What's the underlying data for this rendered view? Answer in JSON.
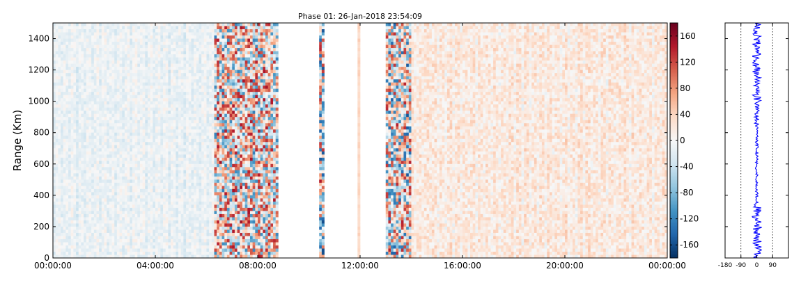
{
  "chart_data": [
    {
      "type": "heatmap",
      "title": "Phase 01: 26-Jan-2018 23:54:09",
      "xlabel": "",
      "ylabel": "Range (Km)",
      "x_ticks": [
        "00:00:00",
        "04:00:00",
        "08:00:00",
        "12:00:00",
        "16:00:00",
        "20:00:00",
        "00:00:00"
      ],
      "x_range_hours": [
        0,
        24
      ],
      "y_ticks": [
        0,
        200,
        400,
        600,
        800,
        1000,
        1200,
        1400
      ],
      "ylim": [
        0,
        1500
      ],
      "grid": false,
      "colorbar": {
        "colormap": "RdBu_r",
        "range": [
          -180,
          180
        ],
        "ticks": [
          160,
          120,
          80,
          40,
          0,
          -40,
          -80,
          -120,
          -160
        ]
      },
      "no_data_intervals_hours": [
        [
          8.85,
          10.45
        ],
        [
          10.6,
          11.9
        ],
        [
          12.02,
          13.02
        ]
      ],
      "regions": [
        {
          "from_hour": 0.0,
          "to_hour": 6.3,
          "mean": -8,
          "spread": 18,
          "description": "mostly near-zero, faint blue stripes"
        },
        {
          "from_hour": 6.3,
          "to_hour": 8.85,
          "mean": 20,
          "spread": 130,
          "description": "noisy, strong red/blue pixels"
        },
        {
          "from_hour": 10.45,
          "to_hour": 10.6,
          "mean": 0,
          "spread": 150,
          "description": "single noisy column"
        },
        {
          "from_hour": 11.9,
          "to_hour": 12.02,
          "mean": 35,
          "spread": 10,
          "description": "single light-red column"
        },
        {
          "from_hour": 13.02,
          "to_hour": 14.0,
          "mean": 0,
          "spread": 140,
          "description": "noisy column group"
        },
        {
          "from_hour": 14.0,
          "to_hour": 24.0,
          "mean": 22,
          "spread": 25,
          "description": "mostly light red, some scattered noise"
        }
      ]
    },
    {
      "type": "line",
      "title": "",
      "xlabel": "",
      "ylabel": "",
      "x_ticks": [
        -180,
        -90,
        0,
        90
      ],
      "xlim": [
        -180,
        180
      ],
      "ylim": [
        0,
        1500
      ],
      "reference_lines_x": [
        -90,
        90
      ],
      "series": [
        {
          "color": "#0000ff",
          "description": "phase profile vs range; amplitude ~ +-25 near 0 to 350 km and 1000 to 1500 km, ~ +-8 elsewhere"
        }
      ]
    }
  ]
}
